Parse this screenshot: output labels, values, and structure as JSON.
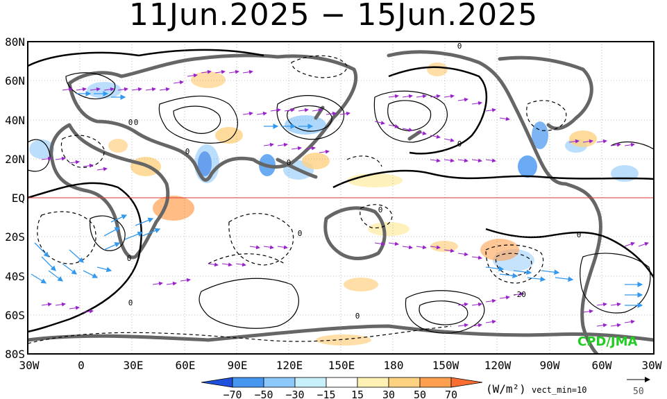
{
  "title": "11Jun.2025 − 15Jun.2025",
  "map": {
    "lat_labels": [
      "80N",
      "60N",
      "40N",
      "20N",
      "EQ",
      "20S",
      "40S",
      "60S",
      "80S"
    ],
    "lon_labels": [
      "30W",
      "0",
      "30E",
      "60E",
      "90E",
      "120E",
      "150E",
      "180",
      "150W",
      "120W",
      "90W",
      "60W",
      "30W"
    ],
    "contour_labels": [
      "0",
      "0",
      "0",
      "0",
      "0",
      "0",
      "0",
      "0",
      "0",
      "0",
      "0",
      "0",
      "-20"
    ],
    "credit": "CPD/JMA"
  },
  "colorbar": {
    "ticks": [
      "−70",
      "−50",
      "−30",
      "−15",
      "15",
      "30",
      "50",
      "70"
    ],
    "units": "(W/m²)",
    "note": "vect_min=10",
    "ref_vector": "50"
  },
  "colors": {
    "neg_strong": "#1e50dc",
    "neg_mid": "#4696f0",
    "neg_light": "#8cc8fa",
    "neg_pale": "#c8f0fa",
    "pos_pale": "#fff0b4",
    "pos_light": "#ffd282",
    "pos_mid": "#ffa050",
    "pos_strong": "#fa6e32",
    "vectors": "#9922cc",
    "vectors_strong": "#3399ee",
    "land": "#666666",
    "equator": "#dd3333"
  }
}
